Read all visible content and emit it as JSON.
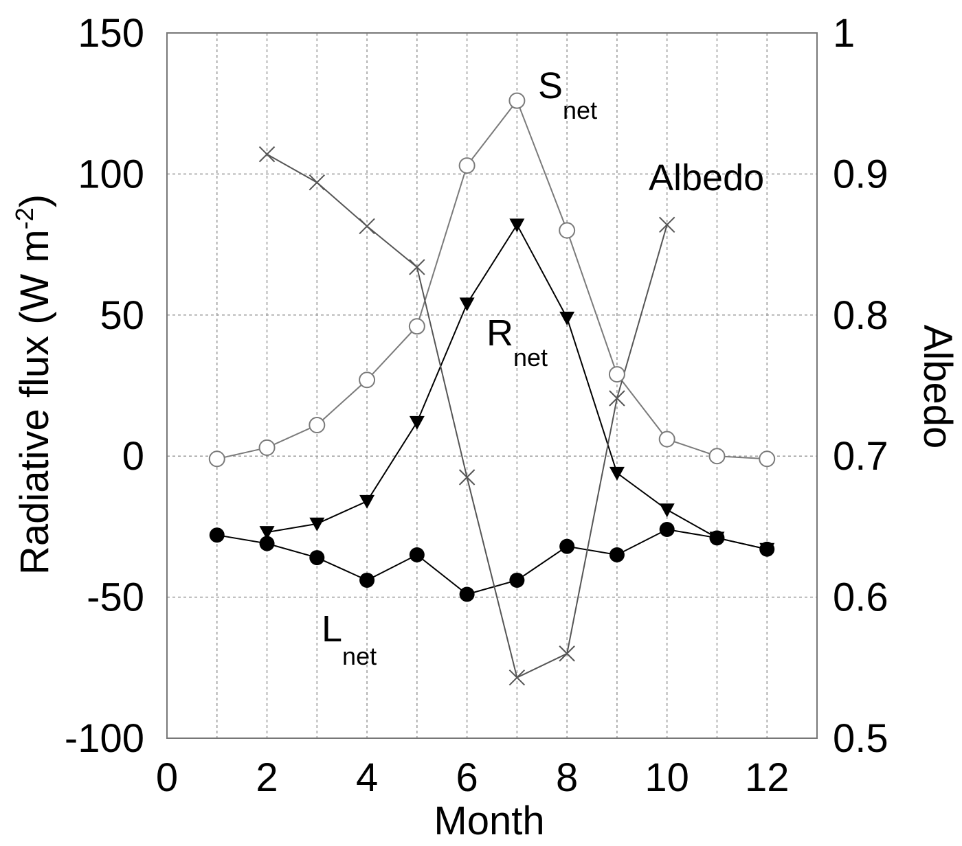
{
  "chart_data": {
    "type": "line",
    "xlabel": "Month",
    "ylabel": "Radiative flux (W m-2)",
    "ylabel_parts": {
      "main": "Radiative flux (W m",
      "sup": "-2",
      "end": ")"
    },
    "y2label": "Albedo",
    "xlim": [
      0,
      13
    ],
    "ylim": [
      -100,
      150
    ],
    "y2lim": [
      0.5,
      1.0
    ],
    "x_ticks": [
      "0",
      "2",
      "4",
      "6",
      "8",
      "10",
      "12"
    ],
    "y_ticks": [
      "-100",
      "-50",
      "0",
      "50",
      "100",
      "150"
    ],
    "y2_ticks": [
      "0.5",
      "0.6",
      "0.7",
      "0.8",
      "0.9",
      "1"
    ],
    "grid": true,
    "series": [
      {
        "name": "S net",
        "label": {
          "main": "S",
          "sub": "net"
        },
        "axis": "left",
        "marker": "open-circle",
        "color": "#7a7a7a",
        "x": [
          1,
          2,
          3,
          4,
          5,
          6,
          7,
          8,
          9,
          10,
          11,
          12
        ],
        "values": [
          -1,
          3,
          11,
          27,
          46,
          103,
          126,
          80,
          29,
          6,
          0,
          -1
        ]
      },
      {
        "name": "R net",
        "label": {
          "main": "R",
          "sub": "net"
        },
        "axis": "left",
        "marker": "filled-triangle-down",
        "color": "#000000",
        "x": [
          2,
          3,
          4,
          5,
          6,
          7,
          8,
          9,
          10,
          11,
          12
        ],
        "values": [
          -27,
          -24,
          -16,
          12,
          54,
          82,
          49,
          -6,
          -19,
          -29,
          -33
        ]
      },
      {
        "name": "L net",
        "label": {
          "main": "L",
          "sub": "net"
        },
        "axis": "left",
        "marker": "filled-circle",
        "color": "#000000",
        "x": [
          1,
          2,
          3,
          4,
          5,
          6,
          7,
          8,
          9,
          10,
          11,
          12
        ],
        "values": [
          -28,
          -31,
          -36,
          -44,
          -35,
          -49,
          -44,
          -32,
          -35,
          -26,
          -29,
          -33
        ]
      },
      {
        "name": "Albedo",
        "label": {
          "main": "Albedo",
          "sub": ""
        },
        "axis": "right",
        "marker": "cross",
        "color": "#555555",
        "x": [
          2,
          3,
          4,
          5,
          6,
          7,
          8,
          9,
          10
        ],
        "values": [
          0.914,
          0.894,
          0.863,
          0.834,
          0.685,
          0.543,
          0.56,
          0.741,
          0.864
        ]
      }
    ]
  }
}
